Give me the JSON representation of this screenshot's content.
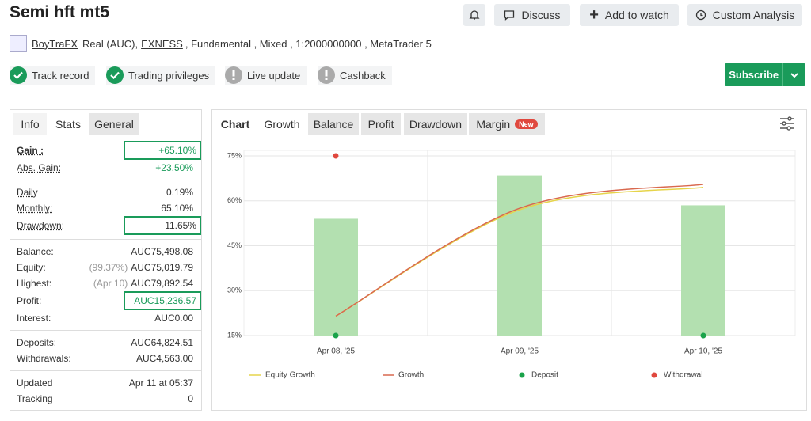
{
  "header": {
    "title": "Semi hft mt5",
    "buttons": [
      "Discuss",
      "Add to watch",
      "Custom Analysis"
    ],
    "author": "BoyTraFX",
    "account": "Real (AUC),",
    "broker": "EXNESS",
    "details": ", Fundamental , Mixed , 1:2000000000 , MetaTrader 5"
  },
  "badges": [
    {
      "label": "Track record",
      "verified": true
    },
    {
      "label": "Trading privileges",
      "verified": true
    },
    {
      "label": "Live update",
      "verified": false
    },
    {
      "label": "Cashback",
      "verified": false
    }
  ],
  "subscribe": "Subscribe",
  "stats": {
    "tabs": [
      "Info",
      "Stats",
      "General"
    ],
    "active_tab": 1,
    "groups": [
      [
        {
          "label": "Gain :",
          "value": "+65.10%",
          "boxed": true,
          "green": true
        },
        {
          "label": "Abs. Gain:",
          "value": "+23.50%",
          "green": true
        }
      ],
      [
        {
          "label": "Daily",
          "value": "0.19%"
        },
        {
          "label": "Monthly:",
          "value": "65.10%"
        },
        {
          "label": "Drawdown:",
          "value": "11.65%",
          "boxed": true
        }
      ],
      [
        {
          "label": "Balance:",
          "value": "AUC75,498.08"
        },
        {
          "label": "Equity:",
          "note": "(99.37%)",
          "value": "AUC75,019.79"
        },
        {
          "label": "Highest:",
          "note": "(Apr 10)",
          "value": "AUC79,892.54"
        },
        {
          "label": "Profit:",
          "value": "AUC15,236.57",
          "boxed": true,
          "green": true
        },
        {
          "label": "Interest:",
          "value": "AUC0.00"
        }
      ],
      [
        {
          "label": "Deposits:",
          "value": "AUC64,824.51"
        },
        {
          "label": "Withdrawals:",
          "value": "AUC4,563.00"
        }
      ],
      [
        {
          "label": "Updated",
          "value": "Apr 11 at 05:37"
        },
        {
          "label": "Tracking",
          "value": "0"
        }
      ]
    ]
  },
  "chart_tabs": {
    "tabs": [
      "Chart",
      "Growth",
      "Balance",
      "Profit",
      "Drawdown",
      "Margin"
    ],
    "active_tab": 1,
    "new_badge": "New"
  },
  "chart_data": {
    "type": "combo",
    "categories": [
      "Apr 08, '25",
      "Apr 09, '25",
      "Apr 10, '25"
    ],
    "bar_values": [
      54,
      68.5,
      58.5
    ],
    "bar_color": "#b3e0b0",
    "series": [
      {
        "name": "Equity Growth",
        "type": "line",
        "color": "#e6d44a",
        "values": [
          21.5,
          57,
          64.5
        ]
      },
      {
        "name": "Growth",
        "type": "line",
        "color": "#d9694f",
        "values": [
          21.5,
          57.5,
          65.5
        ]
      },
      {
        "name": "Deposit",
        "type": "scatter",
        "color": "#1aa34a",
        "values": [
          15,
          null,
          15
        ]
      },
      {
        "name": "Withdrawal",
        "type": "scatter",
        "color": "#e0483e",
        "values": [
          75,
          null,
          null
        ]
      }
    ],
    "ylim": [
      15,
      75
    ],
    "yticks": [
      {
        "value": 15,
        "label": "15%"
      },
      {
        "value": 30,
        "label": "30%"
      },
      {
        "value": 45,
        "label": "45%"
      },
      {
        "value": 60,
        "label": "60%"
      },
      {
        "value": 75,
        "label": "75%"
      }
    ],
    "grid": true
  }
}
